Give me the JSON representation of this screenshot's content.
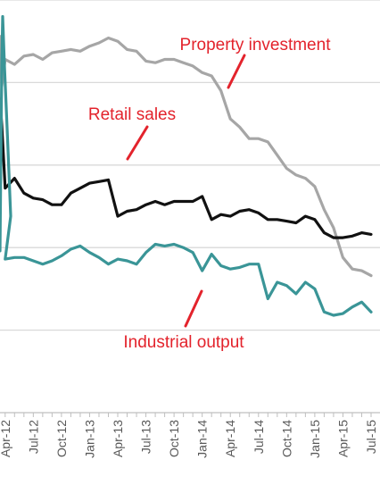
{
  "chart_data": {
    "type": "line",
    "title": "",
    "xlabel": "",
    "ylabel": "",
    "grid": true,
    "legend": "none",
    "x": [
      "Jan-12",
      "Feb-12",
      "Mar-12",
      "Apr-12",
      "May-12",
      "Jun-12",
      "Jul-12",
      "Aug-12",
      "Sep-12",
      "Oct-12",
      "Nov-12",
      "Dec-12",
      "Jan-13",
      "Feb-13",
      "Mar-13",
      "Apr-13",
      "May-13",
      "Jun-13",
      "Jul-13",
      "Aug-13",
      "Sep-13",
      "Oct-13",
      "Nov-13",
      "Dec-13",
      "Jan-14",
      "Feb-14",
      "Mar-14",
      "Apr-14",
      "May-14",
      "Jun-14",
      "Jul-14",
      "Aug-14",
      "Sep-14",
      "Oct-14",
      "Nov-14",
      "Dec-14",
      "Jan-15",
      "Feb-15",
      "Mar-15",
      "Apr-15",
      "May-15",
      "Jun-15",
      "Jul-15"
    ],
    "x_tick_labels": [
      "Apr-12",
      "Jul-12",
      "Oct-12",
      "Jan-13",
      "Apr-13",
      "Jul-13",
      "Oct-13",
      "Jan-14",
      "Apr-14",
      "Jul-14",
      "Oct-14",
      "Jan-15",
      "Apr-15",
      "Jul-15"
    ],
    "series": [
      {
        "name": "Property investment",
        "color": "#a6a6a6",
        "values": [
          null,
          null,
          null,
          21.4,
          21.1,
          21.6,
          21.7,
          21.4,
          21.8,
          21.9,
          22.0,
          21.9,
          22.2,
          22.4,
          22.7,
          22.5,
          22.0,
          21.9,
          21.3,
          21.2,
          21.4,
          21.4,
          21.2,
          21.0,
          20.6,
          20.4,
          19.5,
          17.8,
          17.3,
          16.6,
          16.6,
          16.4,
          15.6,
          14.8,
          14.4,
          14.2,
          13.7,
          12.3,
          11.2,
          9.4,
          8.7,
          8.6,
          8.3
        ]
      },
      {
        "name": "Retail sales",
        "color": "#111111",
        "values": [
          null,
          null,
          null,
          13.6,
          14.2,
          13.3,
          13.0,
          12.9,
          12.6,
          12.6,
          13.3,
          13.6,
          13.9,
          14.0,
          14.1,
          11.9,
          12.2,
          12.3,
          12.6,
          12.8,
          12.6,
          12.8,
          12.8,
          12.8,
          13.1,
          11.7,
          12.0,
          11.9,
          12.2,
          12.3,
          12.1,
          11.7,
          11.7,
          11.6,
          11.5,
          11.9,
          11.7,
          10.9,
          10.6,
          10.6,
          10.7,
          10.9,
          10.8
        ]
      },
      {
        "name": "Industrial output",
        "color": "#3a9597",
        "values": [
          null,
          null,
          null,
          9.3,
          9.4,
          9.4,
          9.2,
          9.0,
          9.2,
          9.5,
          9.9,
          10.1,
          9.7,
          9.4,
          9.0,
          9.3,
          9.2,
          9.0,
          9.7,
          10.2,
          10.1,
          10.2,
          10.0,
          9.7,
          8.6,
          9.6,
          8.9,
          8.7,
          8.8,
          9.0,
          9.0,
          6.9,
          7.9,
          7.7,
          7.2,
          7.9,
          7.5,
          6.1,
          5.9,
          6.0,
          6.4,
          6.7,
          6.1
        ]
      }
    ],
    "x_visible_start": 2.45,
    "ylim": [
      0,
      25
    ],
    "y_gridlines": [
      5,
      10,
      15,
      20,
      25
    ],
    "annotations": [
      {
        "text": "Property investment",
        "series": "Property investment"
      },
      {
        "text": "Retail sales",
        "series": "Retail sales"
      },
      {
        "text": "Industrial output",
        "series": "Industrial output"
      }
    ]
  }
}
